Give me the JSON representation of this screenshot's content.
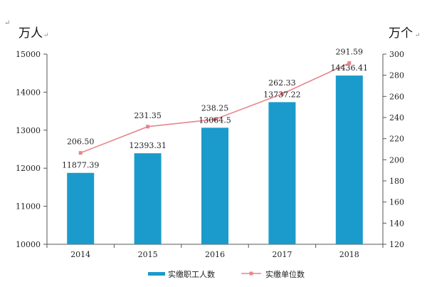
{
  "chart_data": {
    "type": "bar",
    "categories": [
      "2014",
      "2015",
      "2016",
      "2017",
      "2018"
    ],
    "y_left_unit": "万人",
    "y_right_unit": "万个",
    "y_left_range": [
      10000,
      15000
    ],
    "y_left_ticks": [
      10000,
      11000,
      12000,
      13000,
      14000,
      15000
    ],
    "y_right_range": [
      120,
      300
    ],
    "y_right_ticks": [
      120,
      140,
      160,
      180,
      200,
      220,
      240,
      260,
      280,
      300
    ],
    "grid": false,
    "legend_position": "bottom",
    "series": [
      {
        "name": "实缴职工人数",
        "type": "bar",
        "axis": "left",
        "color": "#1a9bcb",
        "values": [
          11877.39,
          12393.31,
          13064.5,
          13737.22,
          14436.41
        ],
        "labels": [
          "11877.39",
          "12393.31",
          "13064.5",
          "13737.22",
          "14436.41"
        ]
      },
      {
        "name": "实缴单位数",
        "type": "line",
        "axis": "right",
        "color": "#e8848c",
        "values": [
          206.5,
          231.35,
          238.25,
          262.33,
          291.59
        ],
        "labels": [
          "206.50",
          "231.35",
          "238.25",
          "262.33",
          "291.59"
        ]
      }
    ],
    "return_mark": "↵"
  }
}
